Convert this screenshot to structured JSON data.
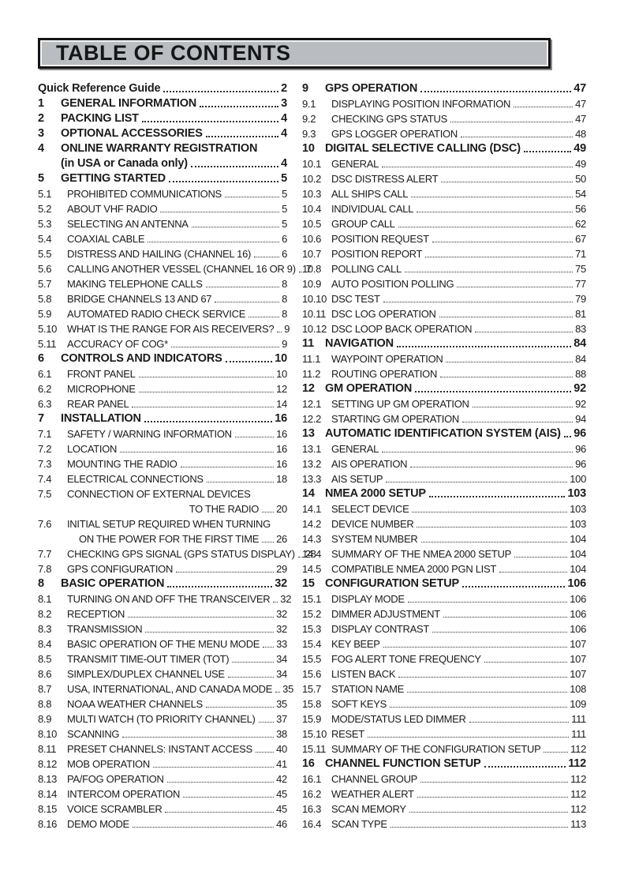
{
  "header": {
    "title": "TABLE OF CONTENTS"
  },
  "colors": {
    "header_bg": "#b9bcc0",
    "ink": "#1b1b1b",
    "leader_dots": "#2e2e2e"
  },
  "columns": [
    {
      "entries": [
        {
          "num": "",
          "title": "Quick Reference Guide",
          "page": "2",
          "bold": true
        },
        {
          "num": "1",
          "title": "GENERAL INFORMATION",
          "page": "3",
          "bold": true
        },
        {
          "num": "2",
          "title": "PACKING LIST",
          "page": "4",
          "bold": true
        },
        {
          "num": "3",
          "title": "OPTIONAL ACCESSORIES",
          "page": "4",
          "bold": true
        },
        {
          "num": "4",
          "title": "ONLINE WARRANTY REGISTRATION",
          "bold": true,
          "line2": "(in USA or Canada only)",
          "line2_mode": "indent",
          "page": "4"
        },
        {
          "num": "5",
          "title": "GETTING STARTED",
          "page": "5",
          "bold": true
        },
        {
          "num": "5.1",
          "title": "PROHIBITED COMMUNICATIONS",
          "page": "5"
        },
        {
          "num": "5.2",
          "title": "ABOUT VHF RADIO",
          "page": "5"
        },
        {
          "num": "5.3",
          "title": "SELECTING AN ANTENNA",
          "page": "5"
        },
        {
          "num": "5.4",
          "title": "COAXIAL CABLE",
          "page": "6"
        },
        {
          "num": "5.5",
          "title": "DISTRESS AND HAILING (CHANNEL 16)",
          "page": "6"
        },
        {
          "num": "5.6",
          "title": "CALLING ANOTHER VESSEL (CHANNEL 16 OR 9)",
          "page": "7"
        },
        {
          "num": "5.7",
          "title": "MAKING TELEPHONE CALLS",
          "page": "8"
        },
        {
          "num": "5.8",
          "title": "BRIDGE CHANNELS 13 AND 67",
          "page": "8"
        },
        {
          "num": "5.9",
          "title": "AUTOMATED RADIO CHECK SERVICE",
          "page": "8"
        },
        {
          "num": "5.10",
          "title": "WHAT IS THE RANGE FOR AIS RECEIVERS?",
          "page": "9"
        },
        {
          "num": "5.11",
          "title": "ACCURACY OF COG*",
          "page": "9"
        },
        {
          "num": "6",
          "title": "CONTROLS AND INDICATORS",
          "page": "10",
          "bold": true
        },
        {
          "num": "6.1",
          "title": "FRONT PANEL",
          "page": "10"
        },
        {
          "num": "6.2",
          "title": "MICROPHONE",
          "page": "12"
        },
        {
          "num": "6.3",
          "title": "REAR PANEL",
          "page": "14"
        },
        {
          "num": "7",
          "title": "INSTALLATION",
          "page": "16",
          "bold": true
        },
        {
          "num": "7.1",
          "title": "SAFETY / WARNING INFORMATION",
          "page": "16"
        },
        {
          "num": "7.2",
          "title": "LOCATION",
          "page": "16"
        },
        {
          "num": "7.3",
          "title": "MOUNTING THE RADIO",
          "page": "16"
        },
        {
          "num": "7.4",
          "title": "ELECTRICAL CONNECTIONS",
          "page": "18"
        },
        {
          "num": "7.5",
          "title": "CONNECTION OF EXTERNAL DEVICES",
          "line2": "TO THE RADIO",
          "line2_mode": "right",
          "page": "20"
        },
        {
          "num": "7.6",
          "title": "INITIAL SETUP REQUIRED WHEN TURNING",
          "line2": "ON THE POWER FOR THE FIRST TIME",
          "line2_mode": "right",
          "page": "26"
        },
        {
          "num": "7.7",
          "title": "CHECKING GPS SIGNAL (GPS STATUS DISPLAY)",
          "page": "28"
        },
        {
          "num": "7.8",
          "title": "GPS CONFIGURATION",
          "page": "29"
        },
        {
          "num": "8",
          "title": "BASIC OPERATION",
          "page": "32",
          "bold": true
        },
        {
          "num": "8.1",
          "title": "TURNING ON AND OFF THE TRANSCEIVER",
          "page": "32"
        },
        {
          "num": "8.2",
          "title": "RECEPTION",
          "page": "32"
        },
        {
          "num": "8.3",
          "title": "TRANSMISSION",
          "page": "32"
        },
        {
          "num": "8.4",
          "title": "BASIC OPERATION OF THE MENU MODE",
          "page": "33"
        },
        {
          "num": "8.5",
          "title": "TRANSMIT TIME-OUT TIMER (TOT)",
          "page": "34"
        },
        {
          "num": "8.6",
          "title": "SIMPLEX/DUPLEX CHANNEL USE",
          "page": "34"
        },
        {
          "num": "8.7",
          "title": "USA, INTERNATIONAL, AND CANADA MODE",
          "page": "35"
        },
        {
          "num": "8.8",
          "title": "NOAA WEATHER CHANNELS",
          "page": "35"
        },
        {
          "num": "8.9",
          "title": "MULTI WATCH (TO PRIORITY CHANNEL)",
          "page": "37"
        },
        {
          "num": "8.10",
          "title": "SCANNING",
          "page": "38"
        },
        {
          "num": "8.11",
          "title": "PRESET CHANNELS: INSTANT ACCESS",
          "page": "40"
        },
        {
          "num": "8.12",
          "title": "MOB OPERATION",
          "page": "41"
        },
        {
          "num": "8.13",
          "title": "PA/FOG OPERATION",
          "page": "42"
        },
        {
          "num": "8.14",
          "title": "INTERCOM OPERATION",
          "page": "45"
        },
        {
          "num": "8.15",
          "title": "VOICE SCRAMBLER",
          "page": "45"
        },
        {
          "num": "8.16",
          "title": "DEMO MODE",
          "page": "46"
        }
      ]
    },
    {
      "entries": [
        {
          "num": "9",
          "title": "GPS OPERATION",
          "page": "47",
          "bold": true
        },
        {
          "num": "9.1",
          "title": "DISPLAYING POSITION INFORMATION",
          "page": "47"
        },
        {
          "num": "9.2",
          "title": "CHECKING GPS STATUS",
          "page": "47"
        },
        {
          "num": "9.3",
          "title": "GPS LOGGER OPERATION",
          "page": "48"
        },
        {
          "num": "10",
          "title": "DIGITAL SELECTIVE CALLING (DSC)",
          "page": "49",
          "bold": true
        },
        {
          "num": "10.1",
          "title": "GENERAL",
          "page": "49"
        },
        {
          "num": "10.2",
          "title": "DSC DISTRESS ALERT",
          "page": "50"
        },
        {
          "num": "10.3",
          "title": "ALL SHIPS CALL",
          "page": "54"
        },
        {
          "num": "10.4",
          "title": "INDIVIDUAL CALL",
          "page": "56"
        },
        {
          "num": "10.5",
          "title": "GROUP CALL",
          "page": "62"
        },
        {
          "num": "10.6",
          "title": "POSITION REQUEST",
          "page": "67"
        },
        {
          "num": "10.7",
          "title": "POSITION REPORT",
          "page": "71"
        },
        {
          "num": "10.8",
          "title": "POLLING CALL",
          "page": "75"
        },
        {
          "num": "10.9",
          "title": "AUTO POSITION POLLING",
          "page": "77"
        },
        {
          "num": "10.10",
          "title": "DSC TEST",
          "page": "79"
        },
        {
          "num": "10.11",
          "title": "DSC LOG OPERATION",
          "page": "81"
        },
        {
          "num": "10.12",
          "title": "DSC LOOP BACK OPERATION",
          "page": "83"
        },
        {
          "num": "11",
          "title": "NAVIGATION",
          "page": "84",
          "bold": true
        },
        {
          "num": "11.1",
          "title": "WAYPOINT OPERATION",
          "page": "84"
        },
        {
          "num": "11.2",
          "title": "ROUTING OPERATION",
          "page": "88"
        },
        {
          "num": "12",
          "title": "GM OPERATION",
          "page": "92",
          "bold": true
        },
        {
          "num": "12.1",
          "title": "SETTING UP GM OPERATION",
          "page": "92"
        },
        {
          "num": "12.2",
          "title": "STARTING GM OPERATION",
          "page": "94"
        },
        {
          "num": "13",
          "title": "AUTOMATIC IDENTIFICATION SYSTEM (AIS)",
          "page": "96",
          "bold": true
        },
        {
          "num": "13.1",
          "title": "GENERAL",
          "page": "96"
        },
        {
          "num": "13.2",
          "title": "AIS OPERATION",
          "page": "96"
        },
        {
          "num": "13.3",
          "title": "AIS SETUP",
          "page": "100"
        },
        {
          "num": "14",
          "title": "NMEA 2000 SETUP",
          "page": "103",
          "bold": true
        },
        {
          "num": "14.1",
          "title": "SELECT DEVICE",
          "page": "103"
        },
        {
          "num": "14.2",
          "title": "DEVICE NUMBER",
          "page": "103"
        },
        {
          "num": "14.3",
          "title": "SYSTEM NUMBER",
          "page": "104"
        },
        {
          "num": "14.4",
          "title": "SUMMARY OF THE NMEA 2000 SETUP",
          "page": "104"
        },
        {
          "num": "14.5",
          "title": "COMPATIBLE NMEA 2000 PGN LIST",
          "page": "104"
        },
        {
          "num": "15",
          "title": "CONFIGURATION SETUP",
          "page": "106",
          "bold": true
        },
        {
          "num": "15.1",
          "title": "DISPLAY MODE",
          "page": "106"
        },
        {
          "num": "15.2",
          "title": "DIMMER ADJUSTMENT",
          "page": "106"
        },
        {
          "num": "15.3",
          "title": "DISPLAY CONTRAST",
          "page": "106"
        },
        {
          "num": "15.4",
          "title": "KEY BEEP",
          "page": "107"
        },
        {
          "num": "15.5",
          "title": "FOG ALERT TONE FREQUENCY",
          "page": "107"
        },
        {
          "num": "15.6",
          "title": "LISTEN BACK",
          "page": "107"
        },
        {
          "num": "15.7",
          "title": "STATION NAME",
          "page": "108"
        },
        {
          "num": "15.8",
          "title": "SOFT KEYS",
          "page": "109"
        },
        {
          "num": "15.9",
          "title": "MODE/STATUS LED DIMMER",
          "page": "111"
        },
        {
          "num": "15.10",
          "title": "RESET",
          "page": "111"
        },
        {
          "num": "15.11",
          "title": "SUMMARY OF THE CONFIGURATION SETUP",
          "page": "112"
        },
        {
          "num": "16",
          "title": "CHANNEL FUNCTION SETUP",
          "page": "112",
          "bold": true
        },
        {
          "num": "16.1",
          "title": "CHANNEL GROUP",
          "page": "112"
        },
        {
          "num": "16.2",
          "title": "WEATHER ALERT",
          "page": "112"
        },
        {
          "num": "16.3",
          "title": "SCAN MEMORY",
          "page": "112"
        },
        {
          "num": "16.4",
          "title": "SCAN TYPE",
          "page": "113"
        }
      ]
    }
  ]
}
